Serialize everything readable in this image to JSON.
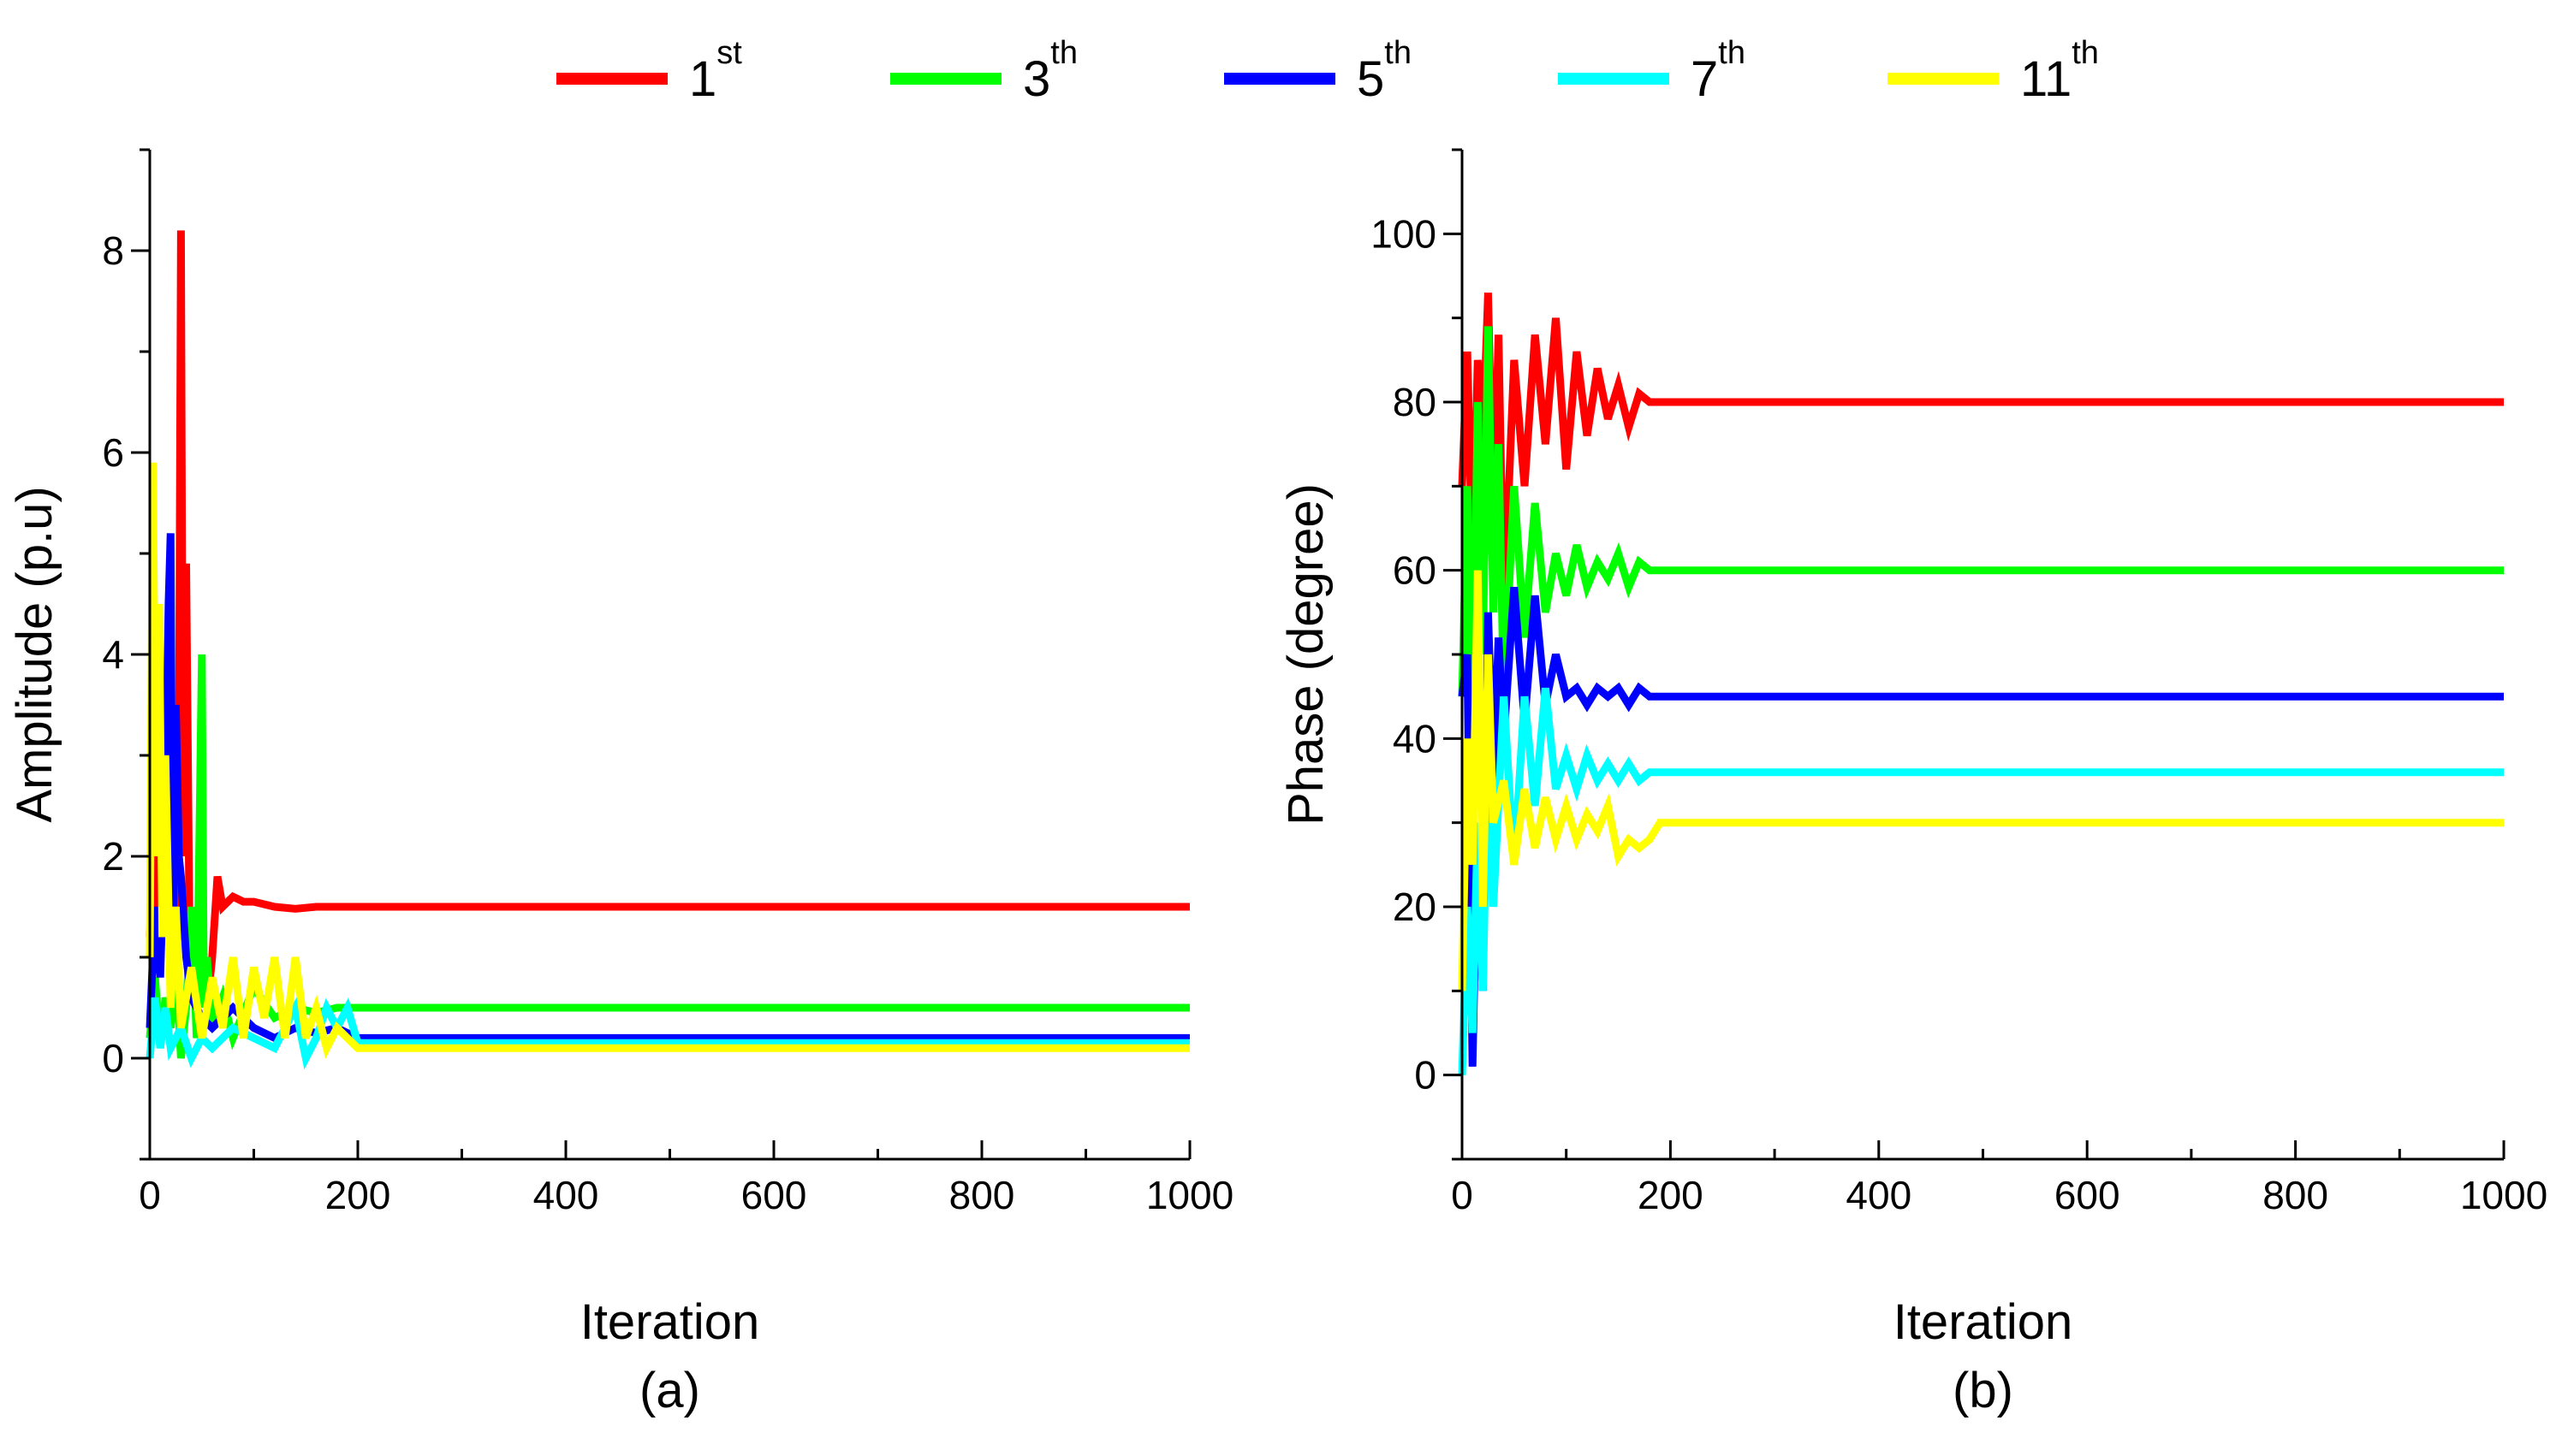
{
  "legend": [
    {
      "base": "1",
      "sup": "st",
      "color": "#ff0000"
    },
    {
      "base": "3",
      "sup": "th",
      "color": "#00ff00"
    },
    {
      "base": "5",
      "sup": "th",
      "color": "#0000ff"
    },
    {
      "base": "7",
      "sup": "th",
      "color": "#00ffff"
    },
    {
      "base": "11",
      "sup": "th",
      "color": "#ffff00"
    }
  ],
  "chart_data": [
    {
      "type": "line",
      "panel_label": "(a)",
      "xlabel": "Iteration",
      "ylabel": "Amplitude (p.u)",
      "xlim": [
        0,
        1000
      ],
      "ylim": [
        -1,
        9
      ],
      "xticks": [
        0,
        200,
        400,
        600,
        800,
        1000
      ],
      "yticks": [
        0,
        2,
        4,
        6,
        8
      ],
      "xtick_labels": [
        "0",
        "200",
        "400",
        "600",
        "800",
        "1000"
      ],
      "ytick_labels": [
        "0",
        "2",
        "4",
        "6",
        "8"
      ],
      "series": [
        {
          "name": "1st",
          "color": "#ff0000",
          "x": [
            0,
            5,
            10,
            15,
            20,
            25,
            28,
            30,
            32,
            35,
            38,
            40,
            45,
            50,
            55,
            60,
            65,
            70,
            80,
            90,
            100,
            120,
            140,
            160,
            200,
            400,
            600,
            800,
            1000
          ],
          "y": [
            1.2,
            2.5,
            1.0,
            1.8,
            2.2,
            0.6,
            3.0,
            8.2,
            2.0,
            4.9,
            1.4,
            1.1,
            0.9,
            1.3,
            0.5,
            1.0,
            1.8,
            1.5,
            1.6,
            1.55,
            1.55,
            1.5,
            1.48,
            1.5,
            1.5,
            1.5,
            1.5,
            1.5,
            1.5
          ]
        },
        {
          "name": "3th",
          "color": "#00ff00",
          "x": [
            0,
            5,
            10,
            15,
            20,
            25,
            30,
            35,
            40,
            45,
            50,
            52,
            55,
            60,
            70,
            80,
            100,
            120,
            140,
            160,
            180,
            200,
            400,
            600,
            800,
            1000
          ],
          "y": [
            0.2,
            0.8,
            0.1,
            0.6,
            0.3,
            0.9,
            0.0,
            0.5,
            1.5,
            0.2,
            4.0,
            0.5,
            1.0,
            0.3,
            0.6,
            0.2,
            0.7,
            0.4,
            0.5,
            0.45,
            0.5,
            0.5,
            0.5,
            0.5,
            0.5,
            0.5
          ]
        },
        {
          "name": "5th",
          "color": "#0000ff",
          "x": [
            0,
            5,
            10,
            15,
            18,
            20,
            22,
            25,
            28,
            30,
            35,
            40,
            50,
            60,
            80,
            100,
            120,
            140,
            160,
            180,
            200,
            400,
            600,
            800,
            1000
          ],
          "y": [
            0.3,
            1.5,
            0.8,
            2.5,
            4.5,
            5.2,
            1.0,
            3.5,
            2.0,
            1.8,
            1.0,
            0.6,
            0.4,
            0.3,
            0.5,
            0.3,
            0.2,
            0.3,
            0.25,
            0.3,
            0.2,
            0.2,
            0.2,
            0.2,
            0.2
          ]
        },
        {
          "name": "7th",
          "color": "#00ffff",
          "x": [
            0,
            5,
            10,
            15,
            20,
            30,
            40,
            50,
            60,
            80,
            100,
            120,
            140,
            150,
            160,
            170,
            180,
            190,
            200,
            400,
            600,
            800,
            1000
          ],
          "y": [
            0.0,
            0.6,
            0.1,
            0.5,
            0.1,
            0.3,
            0.0,
            0.2,
            0.1,
            0.3,
            0.2,
            0.1,
            0.5,
            0.0,
            0.2,
            0.5,
            0.3,
            0.5,
            0.15,
            0.15,
            0.15,
            0.15,
            0.15
          ]
        },
        {
          "name": "11th",
          "color": "#ffff00",
          "x": [
            0,
            3,
            6,
            9,
            12,
            15,
            20,
            25,
            30,
            40,
            50,
            60,
            70,
            80,
            90,
            100,
            110,
            120,
            130,
            140,
            150,
            160,
            170,
            180,
            200,
            400,
            600,
            800,
            1000
          ],
          "y": [
            1.0,
            5.9,
            2.0,
            4.5,
            1.2,
            3.0,
            0.5,
            1.5,
            0.3,
            0.9,
            0.2,
            0.8,
            0.3,
            1.0,
            0.2,
            0.9,
            0.4,
            1.0,
            0.2,
            1.0,
            0.2,
            0.5,
            0.1,
            0.3,
            0.1,
            0.1,
            0.1,
            0.1,
            0.1
          ]
        }
      ]
    },
    {
      "type": "line",
      "panel_label": "(b)",
      "xlabel": "Iteration",
      "ylabel": "Phase (degree)",
      "xlim": [
        0,
        1000
      ],
      "ylim": [
        -10,
        110
      ],
      "xticks": [
        0,
        200,
        400,
        600,
        800,
        1000
      ],
      "yticks": [
        0,
        20,
        40,
        60,
        80,
        100
      ],
      "xtick_labels": [
        "0",
        "200",
        "400",
        "600",
        "800",
        "1000"
      ],
      "ytick_labels": [
        "0",
        "20",
        "40",
        "60",
        "80",
        "100"
      ],
      "series": [
        {
          "name": "1st",
          "color": "#ff0000",
          "x": [
            0,
            5,
            10,
            15,
            20,
            25,
            30,
            35,
            40,
            50,
            60,
            70,
            80,
            90,
            100,
            110,
            120,
            130,
            140,
            150,
            160,
            170,
            180,
            200,
            400,
            600,
            800,
            1000
          ],
          "y": [
            70,
            86,
            60,
            85,
            75,
            93,
            65,
            88,
            55,
            85,
            70,
            88,
            75,
            90,
            72,
            86,
            76,
            84,
            78,
            82,
            77,
            81,
            80,
            80,
            80,
            80,
            80,
            80
          ]
        },
        {
          "name": "3th",
          "color": "#00ff00",
          "x": [
            0,
            5,
            10,
            15,
            20,
            25,
            30,
            35,
            40,
            50,
            60,
            70,
            80,
            90,
            100,
            110,
            120,
            130,
            140,
            150,
            160,
            170,
            180,
            200,
            400,
            600,
            800,
            1000
          ],
          "y": [
            45,
            70,
            40,
            80,
            50,
            89,
            55,
            75,
            45,
            70,
            52,
            68,
            55,
            62,
            57,
            63,
            58,
            61,
            59,
            62,
            58,
            61,
            60,
            60,
            60,
            60,
            60,
            60
          ]
        },
        {
          "name": "5th",
          "color": "#0000ff",
          "x": [
            0,
            5,
            10,
            15,
            20,
            25,
            30,
            35,
            40,
            50,
            60,
            70,
            80,
            90,
            100,
            110,
            120,
            130,
            140,
            150,
            160,
            170,
            180,
            200,
            400,
            600,
            800,
            1000
          ],
          "y": [
            45,
            50,
            1,
            30,
            10,
            55,
            35,
            52,
            40,
            58,
            42,
            57,
            44,
            50,
            45,
            46,
            44,
            46,
            45,
            46,
            44,
            46,
            45,
            45,
            45,
            45,
            45,
            45
          ]
        },
        {
          "name": "7th",
          "color": "#00ffff",
          "x": [
            0,
            5,
            10,
            15,
            20,
            25,
            30,
            40,
            50,
            60,
            70,
            80,
            90,
            100,
            110,
            120,
            130,
            140,
            150,
            160,
            170,
            180,
            200,
            400,
            600,
            800,
            1000
          ],
          "y": [
            0,
            20,
            5,
            30,
            10,
            40,
            20,
            45,
            25,
            45,
            32,
            46,
            34,
            38,
            34,
            38,
            35,
            37,
            35,
            37,
            35,
            36,
            36,
            36,
            36,
            36,
            36
          ]
        },
        {
          "name": "11th",
          "color": "#ffff00",
          "x": [
            0,
            5,
            10,
            15,
            20,
            25,
            30,
            40,
            50,
            60,
            70,
            80,
            90,
            100,
            110,
            120,
            130,
            140,
            150,
            160,
            170,
            180,
            190,
            200,
            400,
            600,
            800,
            1000
          ],
          "y": [
            10,
            40,
            25,
            60,
            20,
            50,
            30,
            35,
            25,
            34,
            27,
            33,
            28,
            32,
            28,
            31,
            29,
            32,
            26,
            28,
            27,
            28,
            30,
            30,
            30,
            30,
            30,
            30
          ]
        }
      ]
    }
  ]
}
